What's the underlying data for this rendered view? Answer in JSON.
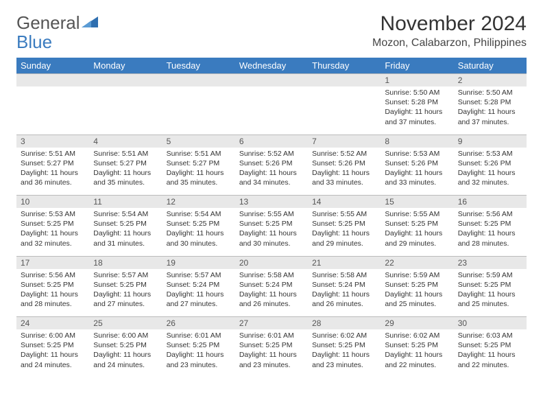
{
  "brand": {
    "part1": "General",
    "part2": "Blue"
  },
  "title": "November 2024",
  "location": "Mozon, Calabarzon, Philippines",
  "colors": {
    "header_bg": "#3a7bbf",
    "header_text": "#ffffff",
    "daynum_bg": "#e8e8e8",
    "border": "#bbbbbb",
    "text": "#333333"
  },
  "day_headers": [
    "Sunday",
    "Monday",
    "Tuesday",
    "Wednesday",
    "Thursday",
    "Friday",
    "Saturday"
  ],
  "weeks": [
    [
      null,
      null,
      null,
      null,
      null,
      {
        "n": "1",
        "sr": "5:50 AM",
        "ss": "5:28 PM",
        "dl": "11 hours and 37 minutes."
      },
      {
        "n": "2",
        "sr": "5:50 AM",
        "ss": "5:28 PM",
        "dl": "11 hours and 37 minutes."
      }
    ],
    [
      {
        "n": "3",
        "sr": "5:51 AM",
        "ss": "5:27 PM",
        "dl": "11 hours and 36 minutes."
      },
      {
        "n": "4",
        "sr": "5:51 AM",
        "ss": "5:27 PM",
        "dl": "11 hours and 35 minutes."
      },
      {
        "n": "5",
        "sr": "5:51 AM",
        "ss": "5:27 PM",
        "dl": "11 hours and 35 minutes."
      },
      {
        "n": "6",
        "sr": "5:52 AM",
        "ss": "5:26 PM",
        "dl": "11 hours and 34 minutes."
      },
      {
        "n": "7",
        "sr": "5:52 AM",
        "ss": "5:26 PM",
        "dl": "11 hours and 33 minutes."
      },
      {
        "n": "8",
        "sr": "5:53 AM",
        "ss": "5:26 PM",
        "dl": "11 hours and 33 minutes."
      },
      {
        "n": "9",
        "sr": "5:53 AM",
        "ss": "5:26 PM",
        "dl": "11 hours and 32 minutes."
      }
    ],
    [
      {
        "n": "10",
        "sr": "5:53 AM",
        "ss": "5:25 PM",
        "dl": "11 hours and 32 minutes."
      },
      {
        "n": "11",
        "sr": "5:54 AM",
        "ss": "5:25 PM",
        "dl": "11 hours and 31 minutes."
      },
      {
        "n": "12",
        "sr": "5:54 AM",
        "ss": "5:25 PM",
        "dl": "11 hours and 30 minutes."
      },
      {
        "n": "13",
        "sr": "5:55 AM",
        "ss": "5:25 PM",
        "dl": "11 hours and 30 minutes."
      },
      {
        "n": "14",
        "sr": "5:55 AM",
        "ss": "5:25 PM",
        "dl": "11 hours and 29 minutes."
      },
      {
        "n": "15",
        "sr": "5:55 AM",
        "ss": "5:25 PM",
        "dl": "11 hours and 29 minutes."
      },
      {
        "n": "16",
        "sr": "5:56 AM",
        "ss": "5:25 PM",
        "dl": "11 hours and 28 minutes."
      }
    ],
    [
      {
        "n": "17",
        "sr": "5:56 AM",
        "ss": "5:25 PM",
        "dl": "11 hours and 28 minutes."
      },
      {
        "n": "18",
        "sr": "5:57 AM",
        "ss": "5:25 PM",
        "dl": "11 hours and 27 minutes."
      },
      {
        "n": "19",
        "sr": "5:57 AM",
        "ss": "5:24 PM",
        "dl": "11 hours and 27 minutes."
      },
      {
        "n": "20",
        "sr": "5:58 AM",
        "ss": "5:24 PM",
        "dl": "11 hours and 26 minutes."
      },
      {
        "n": "21",
        "sr": "5:58 AM",
        "ss": "5:24 PM",
        "dl": "11 hours and 26 minutes."
      },
      {
        "n": "22",
        "sr": "5:59 AM",
        "ss": "5:25 PM",
        "dl": "11 hours and 25 minutes."
      },
      {
        "n": "23",
        "sr": "5:59 AM",
        "ss": "5:25 PM",
        "dl": "11 hours and 25 minutes."
      }
    ],
    [
      {
        "n": "24",
        "sr": "6:00 AM",
        "ss": "5:25 PM",
        "dl": "11 hours and 24 minutes."
      },
      {
        "n": "25",
        "sr": "6:00 AM",
        "ss": "5:25 PM",
        "dl": "11 hours and 24 minutes."
      },
      {
        "n": "26",
        "sr": "6:01 AM",
        "ss": "5:25 PM",
        "dl": "11 hours and 23 minutes."
      },
      {
        "n": "27",
        "sr": "6:01 AM",
        "ss": "5:25 PM",
        "dl": "11 hours and 23 minutes."
      },
      {
        "n": "28",
        "sr": "6:02 AM",
        "ss": "5:25 PM",
        "dl": "11 hours and 23 minutes."
      },
      {
        "n": "29",
        "sr": "6:02 AM",
        "ss": "5:25 PM",
        "dl": "11 hours and 22 minutes."
      },
      {
        "n": "30",
        "sr": "6:03 AM",
        "ss": "5:25 PM",
        "dl": "11 hours and 22 minutes."
      }
    ]
  ],
  "labels": {
    "sunrise": "Sunrise:",
    "sunset": "Sunset:",
    "daylight": "Daylight:"
  }
}
